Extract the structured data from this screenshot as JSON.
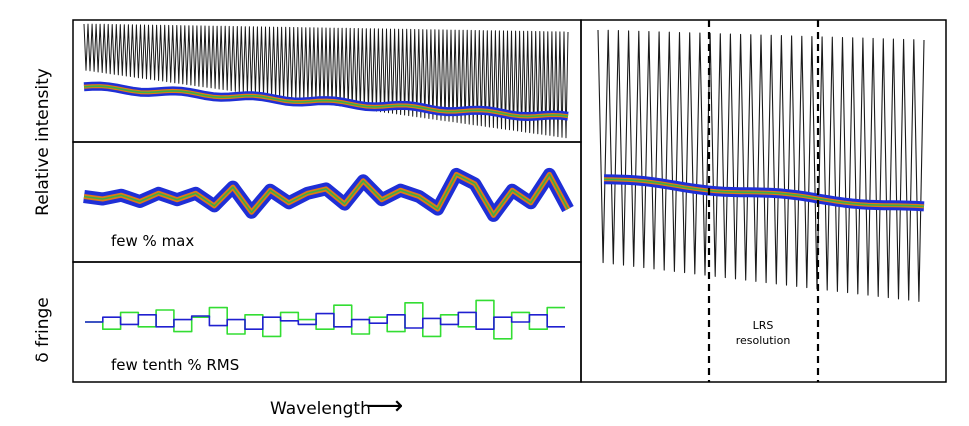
{
  "ylabel_top": "Relative intensity",
  "ylabel_bottom": "δ fringe",
  "xlabel": "Wavelength",
  "arrow_glyph": "⟶",
  "panel_b_note": "few % max",
  "panel_c_note": "few tenth % RMS",
  "panel_d_note": [
    "LRS",
    "resolution"
  ],
  "colors": {
    "fringe": "#1a1a1a",
    "envelope": "#1f2fd6",
    "fit_outer": "#e07a16",
    "fit_inner": "#3cb043",
    "residual_a": "#2020d0",
    "residual_b": "#33dd33"
  },
  "chart_data": [
    {
      "type": "line",
      "panel": "top-left",
      "series": [
        {
          "role": "fringe",
          "style": "black oscillation, slowly decreasing baseline"
        },
        {
          "role": "continuum",
          "y_start": 0.62,
          "y_end": 0.36
        }
      ]
    },
    {
      "type": "line",
      "panel": "middle-left",
      "series": [
        {
          "role": "continuum-residual",
          "values": [
            0.5,
            0.46,
            0.52,
            0.42,
            0.55,
            0.45,
            0.55,
            0.35,
            0.65,
            0.25,
            0.6,
            0.4,
            0.55,
            0.62,
            0.38,
            0.75,
            0.45,
            0.6,
            0.5,
            0.3,
            0.85,
            0.7,
            0.2,
            0.6,
            0.4,
            0.85,
            0.3
          ]
        }
      ],
      "annotation": "few % max"
    },
    {
      "type": "line",
      "panel": "bottom-left",
      "series": [
        {
          "role": "residual-blue",
          "values": [
            0.0,
            0.2,
            -0.1,
            0.3,
            -0.2,
            0.1,
            0.25,
            -0.15,
            0.1,
            -0.3,
            0.2,
            0.05,
            -0.1,
            0.35,
            -0.2,
            0.1,
            -0.05,
            0.3,
            -0.25,
            0.15,
            -0.1,
            0.4,
            -0.3,
            0.2,
            0.0,
            0.3,
            -0.2
          ]
        },
        {
          "role": "residual-green",
          "values": [
            0.0,
            -0.3,
            0.4,
            -0.2,
            0.5,
            -0.4,
            0.2,
            0.6,
            -0.5,
            0.3,
            -0.6,
            0.4,
            0.1,
            -0.3,
            0.7,
            -0.5,
            0.2,
            -0.4,
            0.8,
            -0.6,
            0.3,
            -0.2,
            0.9,
            -0.7,
            0.4,
            -0.3,
            0.6
          ]
        }
      ],
      "annotation": "few tenth % RMS"
    },
    {
      "type": "line",
      "panel": "right",
      "series": [
        {
          "role": "fringe",
          "style": "black oscillation, ~32 cycles"
        },
        {
          "role": "continuum",
          "y_start": 0.56,
          "y_end": 0.48
        }
      ],
      "markers": [
        "LRS resolution (dashed verticals)"
      ]
    }
  ]
}
